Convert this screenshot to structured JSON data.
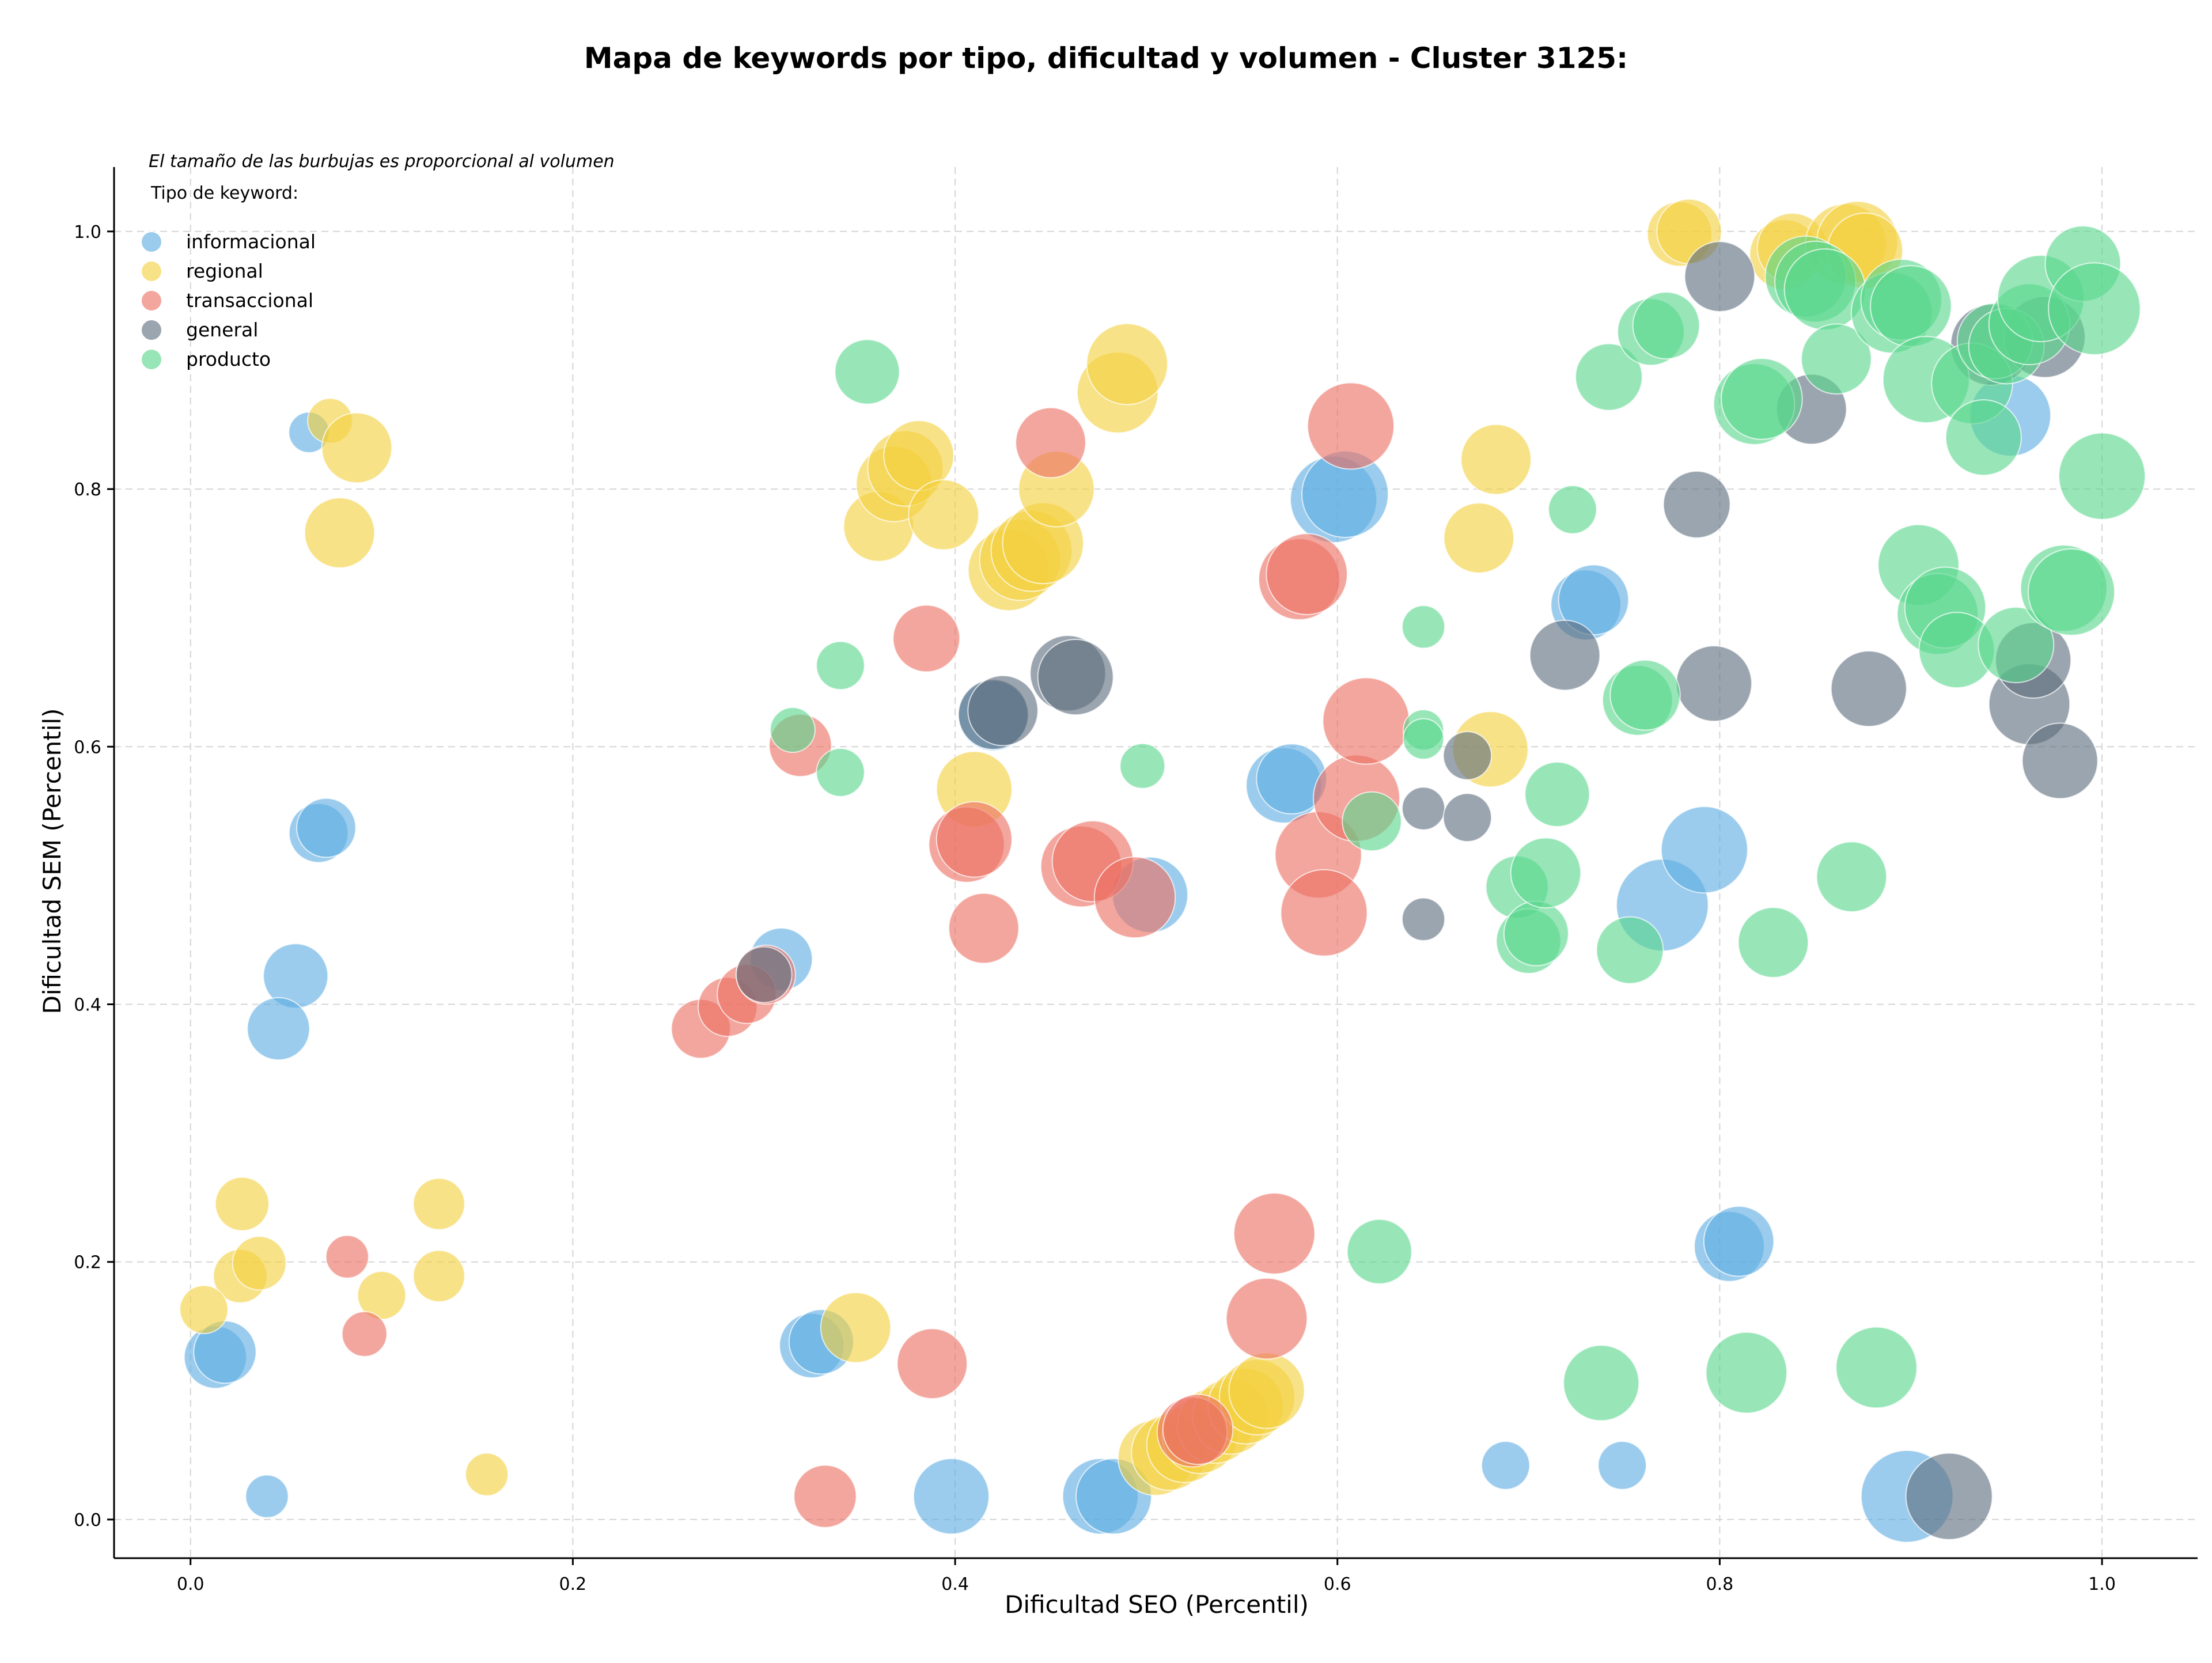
{
  "chart_data": {
    "type": "scatter",
    "title": "Mapa de keywords por tipo, dificultad y volumen - Cluster 3125:",
    "xlabel": "Dificultad SEO (Percentil)",
    "ylabel": "Dificultad SEM (Percentil)",
    "xlim": [
      -0.04,
      1.05
    ],
    "ylim": [
      -0.03,
      1.05
    ],
    "xticks": [
      0.0,
      0.2,
      0.4,
      0.6,
      0.8,
      1.0
    ],
    "yticks": [
      0.0,
      0.2,
      0.4,
      0.6,
      0.8,
      1.0
    ],
    "tick_labels_x": [
      "0.0",
      "0.2",
      "0.4",
      "0.6",
      "0.8",
      "1.0"
    ],
    "tick_labels_y": [
      "0.0",
      "0.2",
      "0.4",
      "0.6",
      "0.8",
      "1.0"
    ],
    "grid": true,
    "size_note": "El tamaño de las burbujas es proporcional al volumen",
    "legend_title": "Tipo de keyword:",
    "legend_position": "top-left",
    "series": [
      {
        "name": "informacional",
        "color": "#5DADE2",
        "points": [
          [
            0.062,
            0.844,
            0.18
          ],
          [
            0.067,
            0.533,
            0.35
          ],
          [
            0.071,
            0.537,
            0.35
          ],
          [
            0.055,
            0.422,
            0.4
          ],
          [
            0.046,
            0.381,
            0.38
          ],
          [
            0.013,
            0.126,
            0.38
          ],
          [
            0.018,
            0.13,
            0.38
          ],
          [
            0.04,
            0.018,
            0.2
          ],
          [
            0.309,
            0.435,
            0.38
          ],
          [
            0.325,
            0.135,
            0.4
          ],
          [
            0.33,
            0.138,
            0.4
          ],
          [
            0.398,
            0.018,
            0.5
          ],
          [
            0.476,
            0.018,
            0.5
          ],
          [
            0.483,
            0.018,
            0.5
          ],
          [
            0.42,
            0.624,
            0.45
          ],
          [
            0.502,
            0.485,
            0.5
          ],
          [
            0.572,
            0.57,
            0.5
          ],
          [
            0.576,
            0.575,
            0.45
          ],
          [
            0.598,
            0.792,
            0.6
          ],
          [
            0.604,
            0.796,
            0.6
          ],
          [
            0.73,
            0.71,
            0.45
          ],
          [
            0.734,
            0.714,
            0.45
          ],
          [
            0.688,
            0.042,
            0.25
          ],
          [
            0.749,
            0.042,
            0.25
          ],
          [
            0.77,
            0.477,
            0.65
          ],
          [
            0.792,
            0.52,
            0.6
          ],
          [
            0.805,
            0.212,
            0.45
          ],
          [
            0.81,
            0.216,
            0.45
          ],
          [
            0.898,
            0.018,
            0.65
          ],
          [
            0.952,
            0.857,
            0.55
          ]
        ]
      },
      {
        "name": "regional",
        "color": "#F4D03F",
        "points": [
          [
            0.073,
            0.853,
            0.22
          ],
          [
            0.087,
            0.832,
            0.45
          ],
          [
            0.078,
            0.766,
            0.45
          ],
          [
            0.027,
            0.245,
            0.3
          ],
          [
            0.026,
            0.189,
            0.3
          ],
          [
            0.036,
            0.199,
            0.3
          ],
          [
            0.007,
            0.163,
            0.25
          ],
          [
            0.13,
            0.245,
            0.28
          ],
          [
            0.13,
            0.189,
            0.28
          ],
          [
            0.1,
            0.174,
            0.25
          ],
          [
            0.155,
            0.035,
            0.2
          ],
          [
            0.348,
            0.149,
            0.45
          ],
          [
            0.36,
            0.771,
            0.45
          ],
          [
            0.368,
            0.804,
            0.5
          ],
          [
            0.374,
            0.816,
            0.5
          ],
          [
            0.381,
            0.826,
            0.45
          ],
          [
            0.394,
            0.78,
            0.45
          ],
          [
            0.41,
            0.567,
            0.5
          ],
          [
            0.428,
            0.737,
            0.55
          ],
          [
            0.434,
            0.745,
            0.55
          ],
          [
            0.44,
            0.752,
            0.55
          ],
          [
            0.446,
            0.758,
            0.55
          ],
          [
            0.453,
            0.8,
            0.5
          ],
          [
            0.485,
            0.875,
            0.55
          ],
          [
            0.49,
            0.897,
            0.55
          ],
          [
            0.505,
            0.048,
            0.5
          ],
          [
            0.512,
            0.052,
            0.5
          ],
          [
            0.52,
            0.058,
            0.5
          ],
          [
            0.528,
            0.065,
            0.5
          ],
          [
            0.536,
            0.073,
            0.5
          ],
          [
            0.544,
            0.08,
            0.5
          ],
          [
            0.552,
            0.088,
            0.5
          ],
          [
            0.558,
            0.095,
            0.5
          ],
          [
            0.563,
            0.1,
            0.5
          ],
          [
            0.674,
            0.762,
            0.45
          ],
          [
            0.68,
            0.598,
            0.5
          ],
          [
            0.683,
            0.823,
            0.45
          ],
          [
            0.779,
            0.998,
            0.4
          ],
          [
            0.784,
            1.0,
            0.4
          ],
          [
            0.834,
            0.982,
            0.45
          ],
          [
            0.838,
            0.987,
            0.45
          ],
          [
            0.866,
            0.99,
            0.55
          ],
          [
            0.872,
            0.992,
            0.55
          ],
          [
            0.876,
            0.985,
            0.5
          ]
        ]
      },
      {
        "name": "transaccional",
        "color": "#EC7063",
        "points": [
          [
            0.082,
            0.204,
            0.2
          ],
          [
            0.091,
            0.144,
            0.22
          ],
          [
            0.267,
            0.381,
            0.35
          ],
          [
            0.281,
            0.398,
            0.35
          ],
          [
            0.291,
            0.408,
            0.35
          ],
          [
            0.301,
            0.423,
            0.35
          ],
          [
            0.319,
            0.601,
            0.38
          ],
          [
            0.332,
            0.018,
            0.38
          ],
          [
            0.388,
            0.121,
            0.45
          ],
          [
            0.385,
            0.684,
            0.42
          ],
          [
            0.406,
            0.524,
            0.5
          ],
          [
            0.41,
            0.528,
            0.5
          ],
          [
            0.415,
            0.459,
            0.45
          ],
          [
            0.45,
            0.836,
            0.45
          ],
          [
            0.466,
            0.507,
            0.55
          ],
          [
            0.472,
            0.511,
            0.55
          ],
          [
            0.494,
            0.483,
            0.55
          ],
          [
            0.524,
            0.068,
            0.45
          ],
          [
            0.527,
            0.07,
            0.45
          ],
          [
            0.563,
            0.156,
            0.55
          ],
          [
            0.567,
            0.222,
            0.55
          ],
          [
            0.58,
            0.73,
            0.55
          ],
          [
            0.584,
            0.734,
            0.55
          ],
          [
            0.59,
            0.516,
            0.6
          ],
          [
            0.593,
            0.471,
            0.6
          ],
          [
            0.607,
            0.849,
            0.6
          ],
          [
            0.61,
            0.56,
            0.6
          ],
          [
            0.615,
            0.62,
            0.6
          ]
        ]
      },
      {
        "name": "general",
        "color": "#5D6D7E",
        "points": [
          [
            0.3,
            0.423,
            0.32
          ],
          [
            0.42,
            0.625,
            0.45
          ],
          [
            0.425,
            0.628,
            0.45
          ],
          [
            0.459,
            0.657,
            0.5
          ],
          [
            0.463,
            0.654,
            0.5
          ],
          [
            0.645,
            0.466,
            0.2
          ],
          [
            0.645,
            0.552,
            0.2
          ],
          [
            0.668,
            0.545,
            0.25
          ],
          [
            0.668,
            0.593,
            0.25
          ],
          [
            0.719,
            0.671,
            0.45
          ],
          [
            0.788,
            0.788,
            0.42
          ],
          [
            0.797,
            0.649,
            0.5
          ],
          [
            0.8,
            0.965,
            0.45
          ],
          [
            0.848,
            0.862,
            0.45
          ],
          [
            0.878,
            0.645,
            0.5
          ],
          [
            0.92,
            0.018,
            0.6
          ],
          [
            0.942,
            0.912,
            0.55
          ],
          [
            0.97,
            0.918,
            0.55
          ],
          [
            0.962,
            0.633,
            0.55
          ],
          [
            0.964,
            0.667,
            0.5
          ],
          [
            0.978,
            0.589,
            0.5
          ]
        ]
      },
      {
        "name": "producto",
        "color": "#58D68D",
        "points": [
          [
            0.354,
            0.891,
            0.4
          ],
          [
            0.34,
            0.663,
            0.25
          ],
          [
            0.315,
            0.613,
            0.22
          ],
          [
            0.34,
            0.58,
            0.25
          ],
          [
            0.498,
            0.585,
            0.22
          ],
          [
            0.645,
            0.693,
            0.2
          ],
          [
            0.645,
            0.613,
            0.18
          ],
          [
            0.645,
            0.606,
            0.18
          ],
          [
            0.618,
            0.542,
            0.35
          ],
          [
            0.622,
            0.208,
            0.4
          ],
          [
            0.694,
            0.491,
            0.38
          ],
          [
            0.7,
            0.449,
            0.4
          ],
          [
            0.704,
            0.455,
            0.4
          ],
          [
            0.709,
            0.502,
            0.45
          ],
          [
            0.715,
            0.563,
            0.4
          ],
          [
            0.723,
            0.784,
            0.25
          ],
          [
            0.738,
            0.106,
            0.5
          ],
          [
            0.742,
            0.887,
            0.42
          ],
          [
            0.753,
            0.442,
            0.42
          ],
          [
            0.757,
            0.636,
            0.45
          ],
          [
            0.761,
            0.64,
            0.45
          ],
          [
            0.764,
            0.922,
            0.42
          ],
          [
            0.772,
            0.927,
            0.42
          ],
          [
            0.814,
            0.114,
            0.55
          ],
          [
            0.818,
            0.866,
            0.55
          ],
          [
            0.822,
            0.87,
            0.55
          ],
          [
            0.828,
            0.448,
            0.45
          ],
          [
            0.845,
            0.965,
            0.55
          ],
          [
            0.85,
            0.961,
            0.55
          ],
          [
            0.855,
            0.955,
            0.55
          ],
          [
            0.861,
            0.901,
            0.45
          ],
          [
            0.869,
            0.499,
            0.45
          ],
          [
            0.882,
            0.118,
            0.55
          ],
          [
            0.89,
            0.937,
            0.55
          ],
          [
            0.895,
            0.947,
            0.55
          ],
          [
            0.9,
            0.942,
            0.55
          ],
          [
            0.904,
            0.741,
            0.55
          ],
          [
            0.908,
            0.885,
            0.6
          ],
          [
            0.914,
            0.703,
            0.55
          ],
          [
            0.918,
            0.708,
            0.55
          ],
          [
            0.924,
            0.675,
            0.5
          ],
          [
            0.932,
            0.882,
            0.55
          ],
          [
            0.938,
            0.84,
            0.5
          ],
          [
            0.944,
            0.915,
            0.5
          ],
          [
            0.95,
            0.911,
            0.5
          ],
          [
            0.955,
            0.679,
            0.5
          ],
          [
            0.962,
            0.928,
            0.55
          ],
          [
            0.968,
            0.948,
            0.6
          ],
          [
            0.98,
            0.723,
            0.6
          ],
          [
            0.984,
            0.72,
            0.6
          ],
          [
            0.99,
            0.975,
            0.5
          ],
          [
            0.996,
            0.94,
            0.65
          ],
          [
            1.0,
            0.81,
            0.6
          ]
        ]
      }
    ]
  }
}
